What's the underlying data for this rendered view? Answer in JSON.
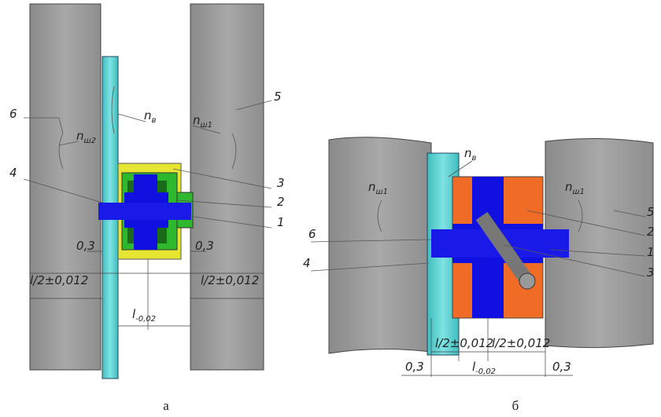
{
  "panels": [
    {
      "caption": "а",
      "labels": [
        {
          "text": "6"
        },
        {
          "main": "n",
          "sub": "ш2"
        },
        {
          "main": "n",
          "sub": "в"
        },
        {
          "main": "n",
          "sub": "ш1"
        },
        {
          "text": "5"
        },
        {
          "text": "4"
        },
        {
          "text": "3"
        },
        {
          "text": "2"
        },
        {
          "text": "1"
        },
        {
          "text": "0,3"
        },
        {
          "text": "0,3"
        },
        {
          "text": "l/2±0,012"
        },
        {
          "text": "l/2±0,012"
        },
        {
          "main": "l",
          "sub": "-0,02"
        }
      ]
    },
    {
      "caption": "б",
      "labels": [
        {
          "main": "n",
          "sub": "ш1"
        },
        {
          "main": "n",
          "sub": "в"
        },
        {
          "main": "n",
          "sub": "ш1"
        },
        {
          "text": "5"
        },
        {
          "text": "2"
        },
        {
          "text": "1"
        },
        {
          "text": "3"
        },
        {
          "text": "6"
        },
        {
          "text": "4"
        },
        {
          "text": "l/2±0,012"
        },
        {
          "text": "l/2±0,012"
        },
        {
          "text": "0,3"
        },
        {
          "main": "l",
          "sub": "-0,02"
        },
        {
          "text": "0,3"
        }
      ]
    }
  ]
}
